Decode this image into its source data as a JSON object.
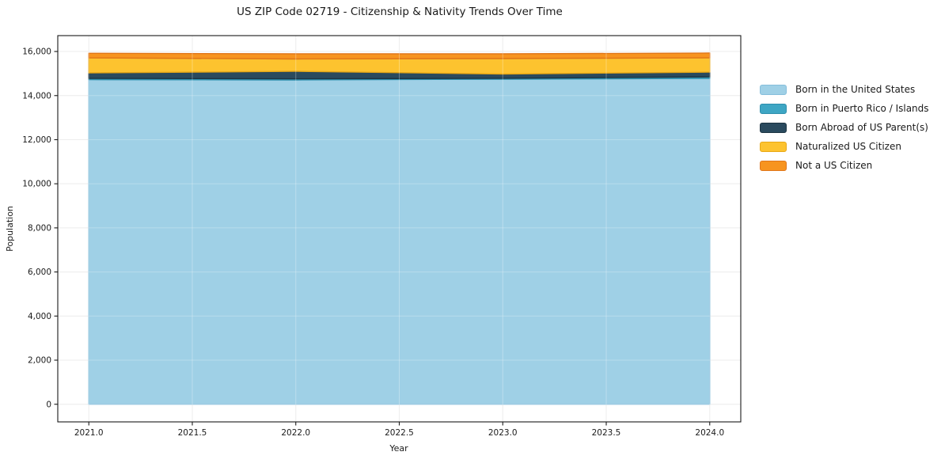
{
  "title": "US ZIP Code 02719 - Citizenship & Nativity Trends Over Time",
  "chart_data": {
    "type": "area",
    "stacked": true,
    "title": "US ZIP Code 02719 - Citizenship & Nativity Trends Over Time",
    "xlabel": "Year",
    "ylabel": "Population",
    "x": [
      2021,
      2022,
      2023,
      2024
    ],
    "series": [
      {
        "id": "born-us",
        "name": "Born in the United States",
        "color": "#9FD0E6",
        "edge_color": "#85BEDC",
        "values": [
          14725,
          14710,
          14745,
          14780
        ]
      },
      {
        "id": "born-pr-islands",
        "name": "Born in Puerto Rico / Islands",
        "color": "#3EA6C4",
        "edge_color": "#2E8FAD",
        "values": [
          55,
          50,
          40,
          70
        ]
      },
      {
        "id": "born-abroad",
        "name": "Born Abroad of US Parent(s)",
        "color": "#2A4A5E",
        "edge_color": "#1C3442",
        "values": [
          250,
          340,
          195,
          215
        ]
      },
      {
        "id": "naturalized",
        "name": "Naturalized US Citizen",
        "color": "#FDC32F",
        "edge_color": "#E8A816",
        "values": [
          680,
          560,
          700,
          650
        ]
      },
      {
        "id": "not-citizen",
        "name": "Not a US Citizen",
        "color": "#F7941F",
        "edge_color": "#E0761A",
        "values": [
          210,
          235,
          215,
          215
        ]
      }
    ],
    "xlim": [
      2020.85,
      2024.15
    ],
    "ylim": [
      -800,
      16720
    ],
    "xticks": {
      "values": [
        2021.0,
        2021.5,
        2022.0,
        2022.5,
        2023.0,
        2023.5,
        2024.0
      ],
      "labels": [
        "2021.0",
        "2021.5",
        "2022.0",
        "2022.5",
        "2023.0",
        "2023.5",
        "2024.0"
      ]
    },
    "yticks": {
      "values": [
        0,
        2000,
        4000,
        6000,
        8000,
        10000,
        12000,
        14000,
        16000
      ],
      "labels": [
        "0",
        "2,000",
        "4,000",
        "6,000",
        "8,000",
        "10,000",
        "12,000",
        "14,000",
        "16,000"
      ]
    },
    "grid": true,
    "grid_color": "#E7E7E7",
    "spine_color": "#1a1a1a",
    "legend_position": "right"
  }
}
